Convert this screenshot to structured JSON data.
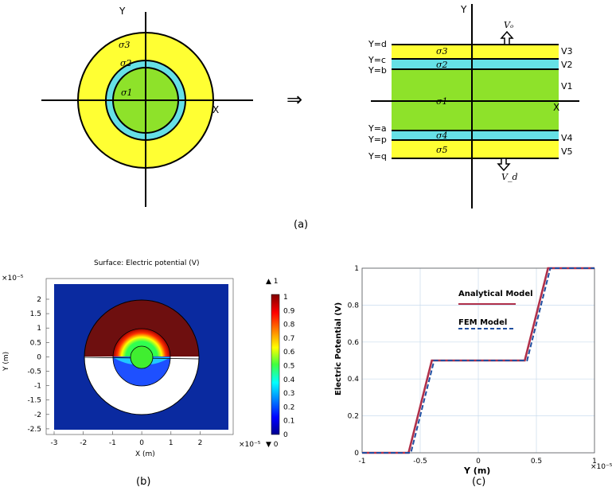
{
  "panel_a": {
    "caption": "(a)",
    "arrow": "⇒",
    "circle": {
      "y_axis": "Y",
      "x_axis": "X",
      "sigma3": "σ3",
      "sigma2": "σ2",
      "sigma1": "σ1"
    },
    "slab": {
      "y_axis": "Y",
      "x_axis": "X",
      "top_electrode": "Vₒ",
      "bottom_electrode": "V_d",
      "left_labels": [
        "Y=d",
        "Y=c",
        "Y=b",
        "Y=a",
        "Y=p",
        "Y=q"
      ],
      "right_labels": [
        "V3",
        "V2",
        "V1",
        "V4",
        "V5"
      ],
      "layers": [
        "σ3",
        "σ2",
        "σ1",
        "σ4",
        "σ5"
      ]
    },
    "colors": {
      "yellow": "#ffff33",
      "cyan": "#66e0e6",
      "green": "#8ee22a"
    }
  },
  "panel_b": {
    "caption": "(b)",
    "title": "Surface: Electric potential (V)",
    "xlabel": "X (m)",
    "ylabel": "Y (m)",
    "x_exponent": "×10⁻⁵",
    "y_exponent": "×10⁻⁵",
    "x_ticks": [
      "-3",
      "-2",
      "-1",
      "0",
      "1",
      "2"
    ],
    "y_ticks": [
      "2",
      "1.5",
      "1",
      "0.5",
      "0",
      "-0.5",
      "-1",
      "-1.5",
      "-2",
      "-2.5"
    ],
    "colorbar_ticks": [
      "1",
      "0.9",
      "0.8",
      "0.7",
      "0.6",
      "0.5",
      "0.4",
      "0.3",
      "0.2",
      "0.1",
      "0"
    ],
    "colorbar_max": "▲ 1",
    "colorbar_min": "▼ 0"
  },
  "chart_data": {
    "type": "line",
    "caption": "(c)",
    "xlabel": "Y  (m)",
    "ylabel": "Electric Potential (V)",
    "x_exponent": "×10⁻⁵",
    "xlim": [
      -1,
      1
    ],
    "ylim": [
      0,
      1
    ],
    "x_ticks": [
      "-1",
      "-0.5",
      "0",
      "0.5",
      "1"
    ],
    "y_ticks": [
      "0",
      "0.2",
      "0.4",
      "0.6",
      "0.8",
      "1"
    ],
    "grid": true,
    "legend": "top-left",
    "series": [
      {
        "name": "Analytical Model",
        "color": "#b0304a",
        "style": "solid",
        "x": [
          -1,
          -0.6,
          -0.4,
          0.4,
          0.6,
          1
        ],
        "y": [
          0,
          0,
          0.5,
          0.5,
          1,
          1
        ]
      },
      {
        "name": "FEM Model",
        "color": "#1f4ea0",
        "style": "dashed",
        "x": [
          -1,
          -0.58,
          -0.38,
          0.42,
          0.62,
          1
        ],
        "y": [
          0,
          0,
          0.5,
          0.5,
          1,
          1
        ]
      }
    ]
  }
}
